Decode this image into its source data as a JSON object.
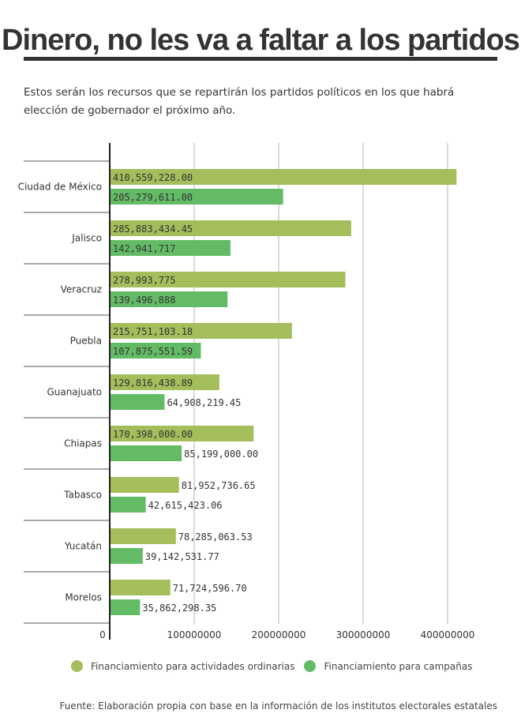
{
  "title": "Dinero, no les va a faltar a los partidos",
  "subtitle": "Estos serán los recursos que se repartirán los partidos políticos en los que habrá elección de gobernador el próximo año.",
  "source": "Fuente: Elaboración propia con base en la información de los institutos electorales estatales",
  "colors": {
    "ordinarias": "#a3be5b",
    "campanas": "#63bb66"
  },
  "chart_data": {
    "type": "bar",
    "orientation": "horizontal",
    "categories": [
      "Ciudad de México",
      "Jalisco",
      "Veracruz",
      "Puebla",
      "Guanajuato",
      "Chiapas",
      "Tabasco",
      "Yucatán",
      "Morelos"
    ],
    "series": [
      {
        "name": "Financiamiento para actividades ordinarias",
        "values": [
          410559228.0,
          285883434.45,
          278993775,
          215751103.18,
          129816438.89,
          170398000.0,
          81952736.65,
          78285063.53,
          71724596.7
        ],
        "labels": [
          "410,559,228.00",
          "285,883,434.45",
          "278,993,775",
          "215,751,103.18",
          "129,816,438.89",
          "170,398,000.00",
          "81,952,736.65",
          "78,285,063.53",
          "71,724,596.70"
        ]
      },
      {
        "name": "Financiamiento para campañas",
        "values": [
          205279611.0,
          142941717,
          139496888,
          107875551.59,
          64908219.45,
          85199000.0,
          42615423.06,
          39142531.77,
          35862298.35
        ],
        "labels": [
          "205,279,611.00",
          "142,941,717",
          "139,496,888",
          "107,875,551.59",
          "64,908,219.45",
          "85,199,000.00",
          "42,615,423.06",
          "39,142,531.77",
          "35,862,298.35"
        ]
      }
    ],
    "xlim": [
      0,
      400000000
    ],
    "xticks": [
      "0",
      "100000000",
      "200000000",
      "300000000",
      "400000000"
    ],
    "legend_position": "bottom",
    "grid": true
  }
}
